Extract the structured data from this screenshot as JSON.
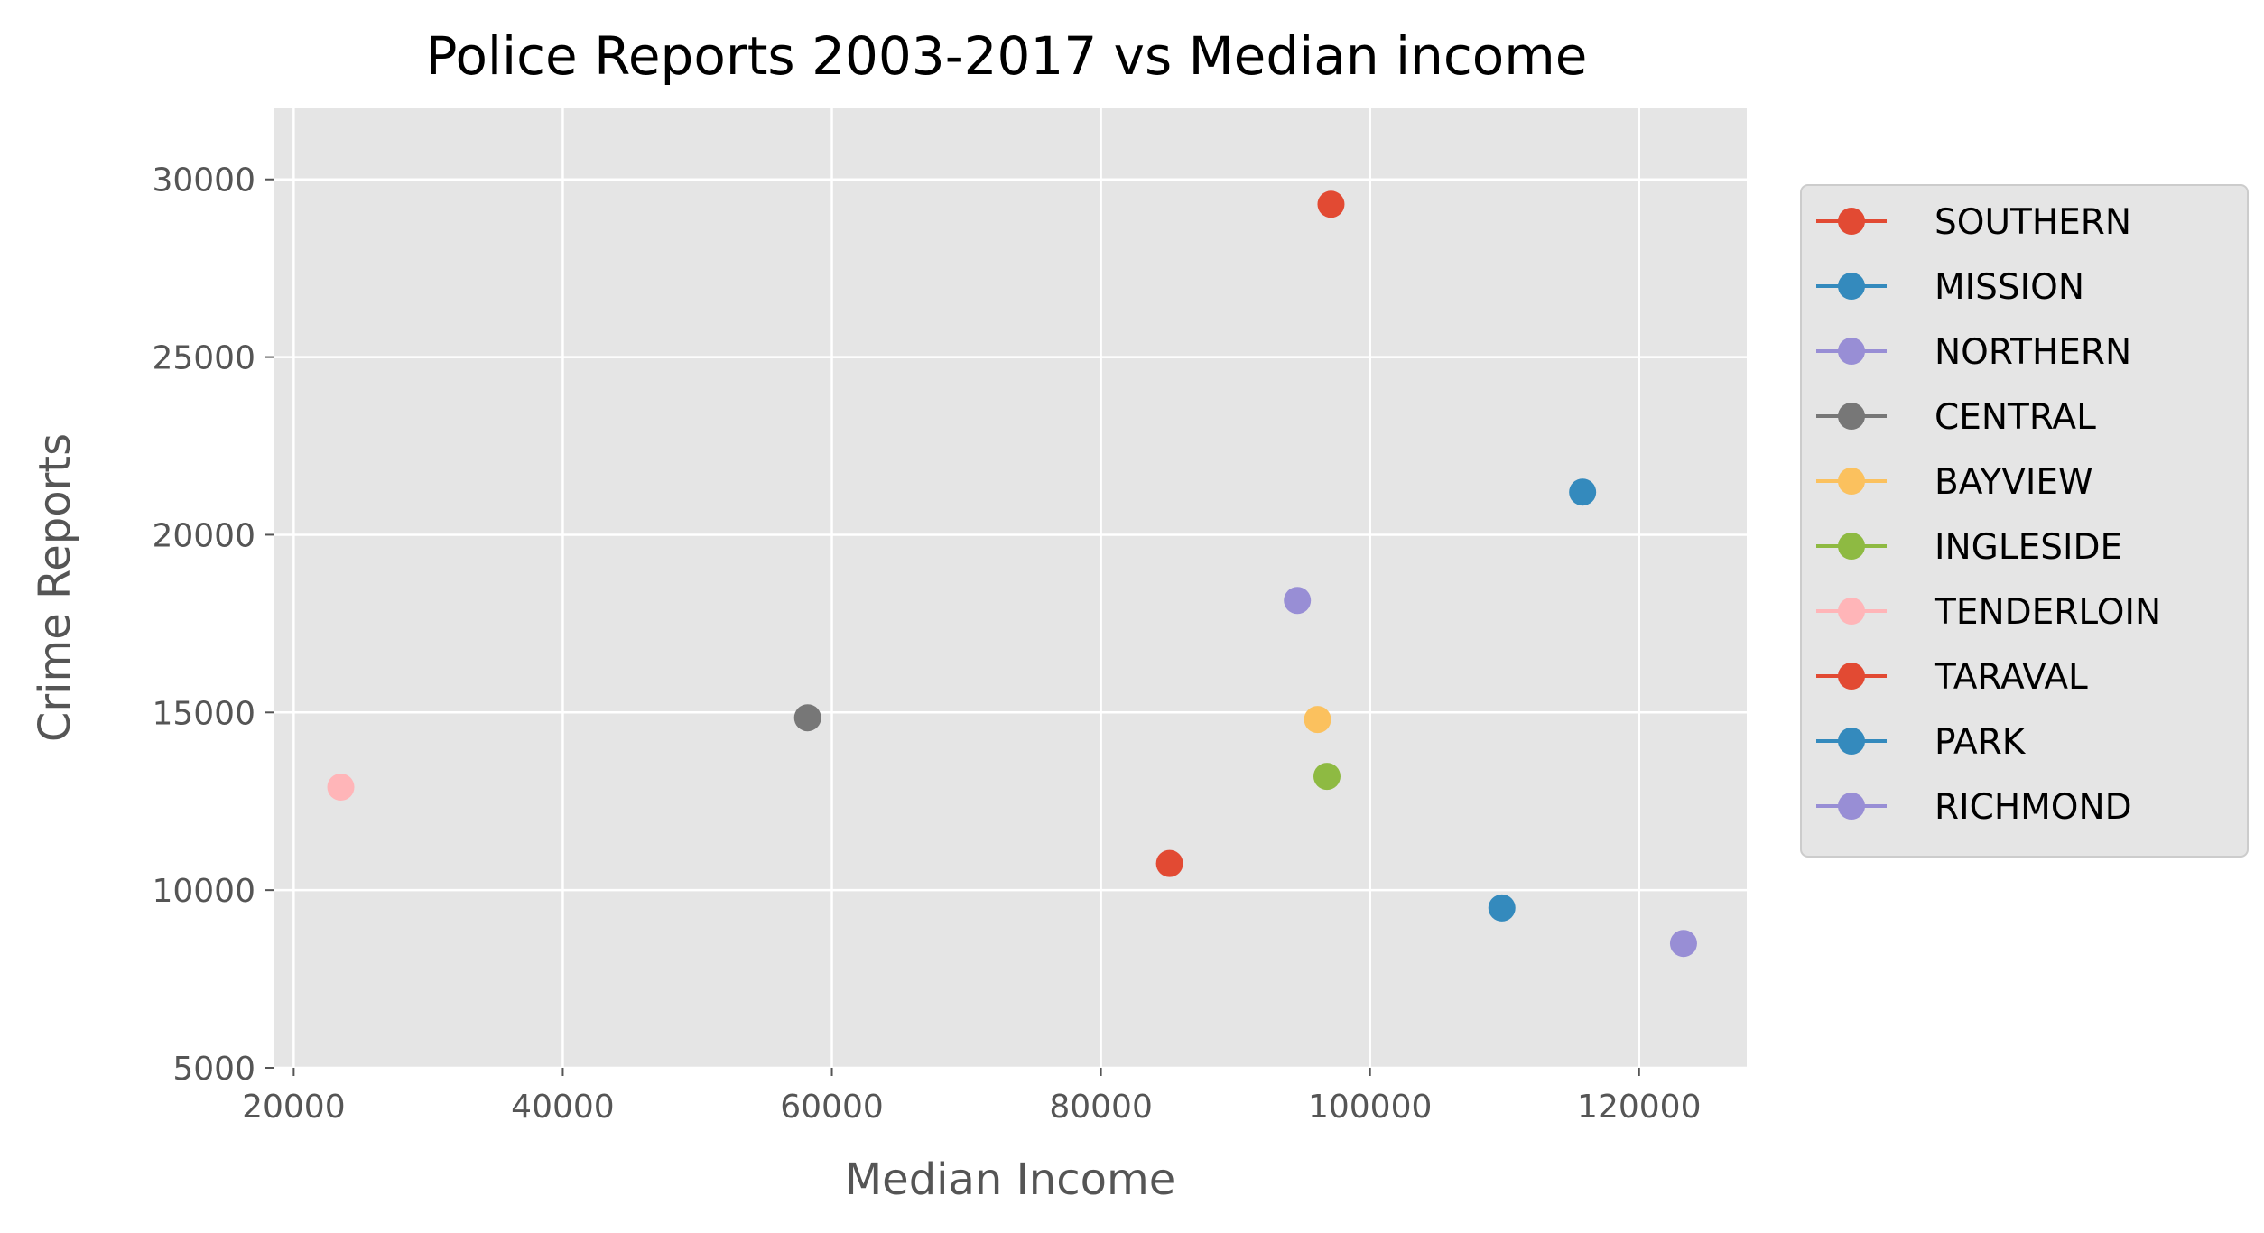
{
  "chart_data": {
    "type": "scatter",
    "title": "Police Reports 2003-2017 vs Median income",
    "xlabel": "Median Income",
    "ylabel": "Crime Reports",
    "xlim": [
      18500,
      128000
    ],
    "ylim": [
      5000,
      32000
    ],
    "xticks": [
      20000,
      40000,
      60000,
      80000,
      100000,
      120000
    ],
    "yticks": [
      5000,
      10000,
      15000,
      20000,
      25000,
      30000
    ],
    "grid": true,
    "legend_placement": "right, outside plot",
    "series": [
      {
        "name": "SOUTHERN",
        "color": "#E24A33",
        "x": 97100,
        "y": 29300
      },
      {
        "name": "MISSION",
        "color": "#348ABD",
        "x": 115800,
        "y": 21200
      },
      {
        "name": "NORTHERN",
        "color": "#988ED5",
        "x": 94600,
        "y": 18150
      },
      {
        "name": "CENTRAL",
        "color": "#777777",
        "x": 58200,
        "y": 14850
      },
      {
        "name": "BAYVIEW",
        "color": "#FBC15E",
        "x": 96100,
        "y": 14800
      },
      {
        "name": "INGLESIDE",
        "color": "#8EBA42",
        "x": 96800,
        "y": 13200
      },
      {
        "name": "TENDERLOIN",
        "color": "#FFB5B8",
        "x": 23500,
        "y": 12900
      },
      {
        "name": "TARAVAL",
        "color": "#E24A33",
        "x": 85100,
        "y": 10750
      },
      {
        "name": "PARK",
        "color": "#348ABD",
        "x": 109800,
        "y": 9500
      },
      {
        "name": "RICHMOND",
        "color": "#988ED5",
        "x": 123300,
        "y": 8500
      }
    ]
  }
}
